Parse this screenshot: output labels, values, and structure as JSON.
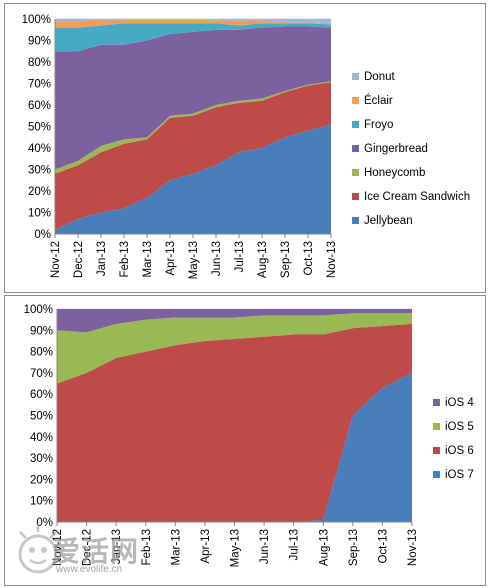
{
  "chart_data": [
    {
      "type": "area",
      "stacked": "percent",
      "categories": [
        "Nov-12",
        "Dec-12",
        "Jan-13",
        "Feb-13",
        "Mar-13",
        "Apr-13",
        "May-13",
        "Jun-13",
        "Jul-13",
        "Aug-13",
        "Sep-13",
        "Oct-13",
        "Nov-13"
      ],
      "ylim": [
        0,
        100
      ],
      "yticks": [
        "0%",
        "10%",
        "20%",
        "30%",
        "40%",
        "50%",
        "60%",
        "70%",
        "80%",
        "90%",
        "100%"
      ],
      "legend_position": "right",
      "series": [
        {
          "name": "Jellybean",
          "color": "#4a7ebb",
          "values": [
            2,
            7,
            10,
            12,
            17,
            25,
            28,
            32,
            38,
            40,
            45,
            48,
            51
          ]
        },
        {
          "name": "Ice Cream Sandwich",
          "color": "#be4b48",
          "values": [
            26,
            25,
            28,
            30,
            27,
            29,
            27,
            27,
            23,
            22,
            21,
            21,
            19.5
          ]
        },
        {
          "name": "Honeycomb",
          "color": "#98b954",
          "values": [
            2,
            2,
            3,
            2,
            1,
            1,
            1,
            1,
            1,
            1,
            0.5,
            0.5,
            0.5
          ]
        },
        {
          "name": "Gingerbread",
          "color": "#7d60a0",
          "values": [
            55,
            51,
            47,
            44,
            45,
            38,
            38,
            35,
            33,
            33,
            30,
            27,
            25
          ]
        },
        {
          "name": "Froyo",
          "color": "#46aac5",
          "values": [
            11,
            11,
            9,
            10,
            8,
            5,
            4,
            3,
            2,
            2,
            1.5,
            1.5,
            1.5
          ]
        },
        {
          "name": "Éclair",
          "color": "#f59d56",
          "values": [
            3,
            3,
            2.5,
            1.5,
            1.5,
            1.5,
            1.5,
            1.5,
            2,
            1.5,
            0.5,
            0.5,
            0.5
          ]
        },
        {
          "name": "Donut",
          "color": "#9fb6dd",
          "values": [
            1,
            1,
            0.5,
            0.5,
            0.5,
            0.5,
            0.5,
            0.5,
            1,
            0.5,
            1.5,
            1.5,
            2
          ]
        }
      ]
    },
    {
      "type": "area",
      "stacked": "percent",
      "categories": [
        "Nov-12",
        "Dec-12",
        "Jan-13",
        "Feb-13",
        "Mar-13",
        "Apr-13",
        "May-13",
        "Jun-13",
        "Jul-13",
        "Aug-13",
        "Sep-13",
        "Oct-13",
        "Nov-13"
      ],
      "ylim": [
        0,
        100
      ],
      "yticks": [
        "0%",
        "10%",
        "20%",
        "30%",
        "40%",
        "50%",
        "60%",
        "70%",
        "80%",
        "90%",
        "100%"
      ],
      "legend_position": "right",
      "series": [
        {
          "name": "iOS 7",
          "color": "#4a7ebb",
          "values": [
            0,
            0,
            0,
            0,
            0,
            0,
            0,
            0,
            0,
            1,
            50,
            63,
            70
          ]
        },
        {
          "name": "iOS 6",
          "color": "#be4b48",
          "values": [
            65,
            70,
            77,
            80,
            83,
            85,
            86,
            87,
            88,
            87,
            41,
            29,
            23
          ]
        },
        {
          "name": "iOS 5",
          "color": "#98b954",
          "values": [
            25,
            19,
            16,
            15,
            13,
            11,
            10,
            10,
            9,
            9,
            7,
            6,
            5
          ]
        },
        {
          "name": "iOS 4",
          "color": "#7d60a0",
          "values": [
            10,
            11,
            7,
            5,
            4,
            4,
            4,
            3,
            3,
            3,
            2,
            2,
            2
          ]
        }
      ]
    }
  ],
  "watermark": {
    "text": "爱活网",
    "url": "www.evolife.cn"
  }
}
